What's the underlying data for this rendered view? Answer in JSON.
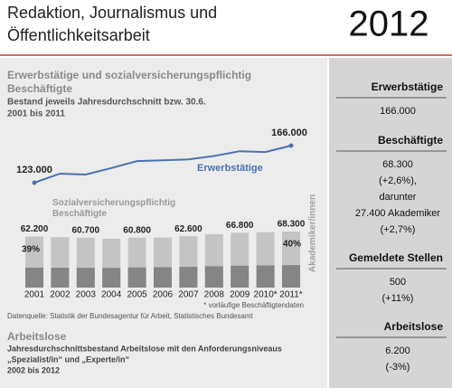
{
  "header": {
    "title_lines": [
      "Redaktion, Journalismus und",
      "Öffentlichkeitsarbeit"
    ],
    "year": "2012"
  },
  "chart_data": {
    "type": "combo",
    "title_lines": [
      "Erwerbstätige und sozialversicherungspflichtig",
      "Beschäftigte"
    ],
    "subtitle_lines": [
      "Bestand jeweils Jahresdurchschnitt bzw. 30.6.",
      "2001 bis 2011"
    ],
    "categories": [
      "2001",
      "2002",
      "2003",
      "2004",
      "2005",
      "2006",
      "2007",
      "2008",
      "2009",
      "2010*",
      "2011*"
    ],
    "series": [
      {
        "name": "Erwerbstätige",
        "type": "line",
        "color": "#4a72b0",
        "values": [
          123000,
          133500,
          132500,
          140000,
          148000,
          149000,
          150000,
          154000,
          159500,
          158500,
          166000
        ],
        "value_labels": [
          "123.000",
          null,
          null,
          null,
          null,
          null,
          null,
          null,
          null,
          null,
          "166.000"
        ]
      },
      {
        "name": "Sozialversicherungspflichtig Beschäftigte",
        "type": "bar",
        "color": "#c4c4c4",
        "values": [
          62200,
          61500,
          60700,
          59500,
          60800,
          61000,
          62600,
          65000,
          66800,
          67500,
          68300
        ],
        "value_labels": [
          "62.200",
          null,
          "60.700",
          null,
          "60.800",
          null,
          "62.600",
          null,
          "66.800",
          null,
          "68.300"
        ]
      },
      {
        "name": "Akademiker/innen",
        "type": "bar",
        "color": "#858585",
        "values": [
          24300,
          24200,
          24100,
          24000,
          24500,
          24800,
          25300,
          26000,
          26600,
          27000,
          27400
        ]
      }
    ],
    "annotations": [
      "39%",
      "40%"
    ],
    "footnote": "* vorläufige Beschäftigtendaten",
    "source": "Datenquelle: Statistik der Bundesagentur für Arbeit, Statistisches Bundesamt"
  },
  "unemployment": {
    "title": "Arbeitslose",
    "lines": [
      "Jahresdurchschnittsbestand Arbeitslose mit den Anforderungsniveaus",
      "„Spezialist/in“ und „Experte/in“",
      "2002 bis 2012"
    ]
  },
  "sidebar": [
    {
      "heading": "Erwerbstätige",
      "lines": [
        "166.000"
      ]
    },
    {
      "heading": "Beschäftigte",
      "lines": [
        "68.300",
        "(+2,6%),",
        "darunter",
        "27.400 Akademiker",
        "(+2,7%)"
      ]
    },
    {
      "heading": "Gemeldete Stellen",
      "lines": [
        "500",
        "(+11%)"
      ]
    },
    {
      "heading": "Arbeitslose",
      "lines": [
        "6.200",
        "(-3%)"
      ]
    }
  ]
}
